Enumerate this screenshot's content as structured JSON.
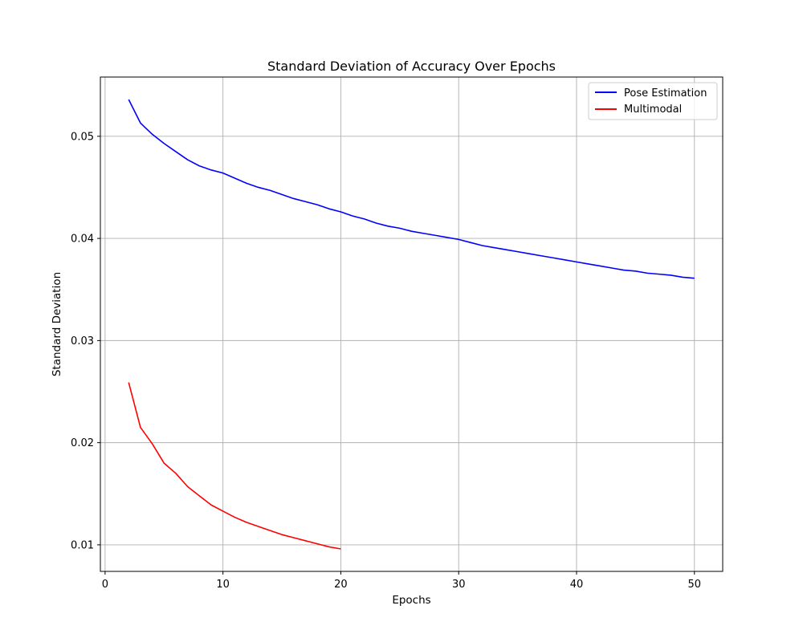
{
  "chart_data": {
    "type": "line",
    "title": "Standard Deviation of Accuracy Over Epochs",
    "xlabel": "Epochs",
    "ylabel": "Standard Deviation",
    "xlim": [
      -0.4,
      52.4
    ],
    "ylim": [
      0.0074,
      0.0558
    ],
    "xticks": [
      0,
      10,
      20,
      30,
      40,
      50
    ],
    "yticks": [
      0.01,
      0.02,
      0.03,
      0.04,
      0.05
    ],
    "ytick_labels": [
      "0.01",
      "0.02",
      "0.03",
      "0.04",
      "0.05"
    ],
    "grid": true,
    "legend": "top-right",
    "series": [
      {
        "name": "Pose Estimation",
        "color": "#0000ff",
        "x": [
          2,
          3,
          4,
          5,
          6,
          7,
          8,
          9,
          10,
          11,
          12,
          13,
          14,
          15,
          16,
          17,
          18,
          19,
          20,
          21,
          22,
          23,
          24,
          25,
          26,
          27,
          28,
          29,
          30,
          31,
          32,
          33,
          34,
          35,
          36,
          37,
          38,
          39,
          40,
          41,
          42,
          43,
          44,
          45,
          46,
          47,
          48,
          49,
          50
        ],
        "y": [
          0.0536,
          0.0513,
          0.0502,
          0.0493,
          0.0485,
          0.0477,
          0.0471,
          0.0467,
          0.0464,
          0.0459,
          0.0454,
          0.045,
          0.0447,
          0.0443,
          0.0439,
          0.0436,
          0.0433,
          0.0429,
          0.0426,
          0.0422,
          0.0419,
          0.0415,
          0.0412,
          0.041,
          0.0407,
          0.0405,
          0.0403,
          0.0401,
          0.0399,
          0.0396,
          0.0393,
          0.0391,
          0.0389,
          0.0387,
          0.0385,
          0.0383,
          0.0381,
          0.0379,
          0.0377,
          0.0375,
          0.0373,
          0.0371,
          0.0369,
          0.0368,
          0.0366,
          0.0365,
          0.0364,
          0.0362,
          0.0361
        ]
      },
      {
        "name": "Multimodal",
        "color": "#ff0000",
        "x": [
          2,
          3,
          4,
          5,
          6,
          7,
          8,
          9,
          10,
          11,
          12,
          13,
          14,
          15,
          16,
          17,
          18,
          19,
          20
        ],
        "y": [
          0.0259,
          0.0215,
          0.0199,
          0.018,
          0.017,
          0.0157,
          0.0148,
          0.0139,
          0.0133,
          0.0127,
          0.0122,
          0.0118,
          0.0114,
          0.011,
          0.0107,
          0.0104,
          0.0101,
          0.0098,
          0.0096
        ]
      }
    ]
  }
}
